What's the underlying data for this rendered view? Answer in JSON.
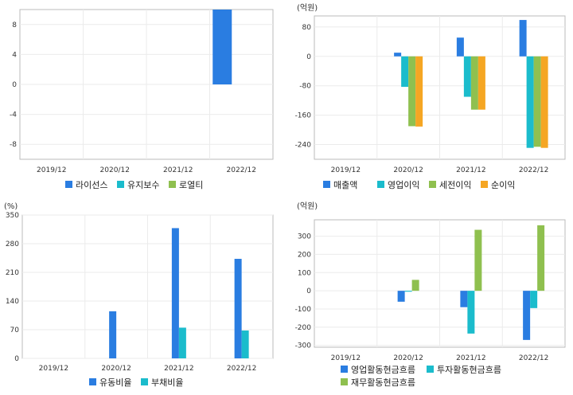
{
  "chart_data": [
    {
      "type": "bar",
      "unit": "",
      "categories": [
        "2019/12",
        "2020/12",
        "2021/12",
        "2022/12"
      ],
      "ylim": [
        -10,
        10
      ],
      "yticks": [
        -8,
        -4,
        0,
        4,
        8
      ],
      "grid": true,
      "legend_position": "bottom",
      "series": [
        {
          "name": "라이선스",
          "color": "#2a7de1",
          "values": [
            null,
            null,
            null,
            10
          ]
        },
        {
          "name": "유지보수",
          "color": "#1bbccc",
          "values": [
            null,
            null,
            null,
            null
          ]
        },
        {
          "name": "로열티",
          "color": "#8fc04f",
          "values": [
            null,
            null,
            null,
            null
          ]
        }
      ]
    },
    {
      "type": "bar",
      "unit": "(억원)",
      "categories": [
        "2019/12",
        "2020/12",
        "2021/12",
        "2022/12"
      ],
      "ylim": [
        -280,
        110
      ],
      "yticks": [
        -240,
        -160,
        -80,
        0,
        80
      ],
      "grid": true,
      "legend_position": "bottom",
      "series": [
        {
          "name": "매출액",
          "color": "#2a7de1",
          "values": [
            null,
            10,
            51,
            99
          ]
        },
        {
          "name": "영업이익",
          "color": "#1bbccc",
          "values": [
            null,
            -83,
            -110,
            -249
          ]
        },
        {
          "name": "세전이익",
          "color": "#8fc04f",
          "values": [
            null,
            -190,
            -145,
            -246
          ]
        },
        {
          "name": "순이익",
          "color": "#f5a623",
          "values": [
            null,
            -191,
            -145,
            -249
          ]
        }
      ]
    },
    {
      "type": "bar",
      "unit": "(%)",
      "categories": [
        "2019/12",
        "2020/12",
        "2021/12",
        "2022/12"
      ],
      "ylim": [
        0,
        350
      ],
      "yticks": [
        0,
        70,
        140,
        210,
        280,
        350
      ],
      "grid": true,
      "legend_position": "bottom",
      "series": [
        {
          "name": "유동비율",
          "color": "#2a7de1",
          "values": [
            null,
            115,
            318,
            243
          ]
        },
        {
          "name": "부채비율",
          "color": "#1bbccc",
          "values": [
            null,
            null,
            75,
            68
          ]
        }
      ]
    },
    {
      "type": "bar",
      "unit": "(억원)",
      "categories": [
        "2019/12",
        "2020/12",
        "2021/12",
        "2022/12"
      ],
      "ylim": [
        -310,
        390
      ],
      "yticks": [
        -300,
        -200,
        -100,
        0,
        100,
        200,
        300
      ],
      "grid": true,
      "legend_position": "bottom",
      "series": [
        {
          "name": "영업활동현금흐름",
          "color": "#2a7de1",
          "values": [
            null,
            -60,
            -90,
            -270
          ]
        },
        {
          "name": "투자활동현금흐름",
          "color": "#1bbccc",
          "values": [
            null,
            -5,
            -235,
            -95
          ]
        },
        {
          "name": "재무활동현금흐름",
          "color": "#8fc04f",
          "values": [
            null,
            60,
            335,
            360
          ]
        }
      ]
    }
  ]
}
